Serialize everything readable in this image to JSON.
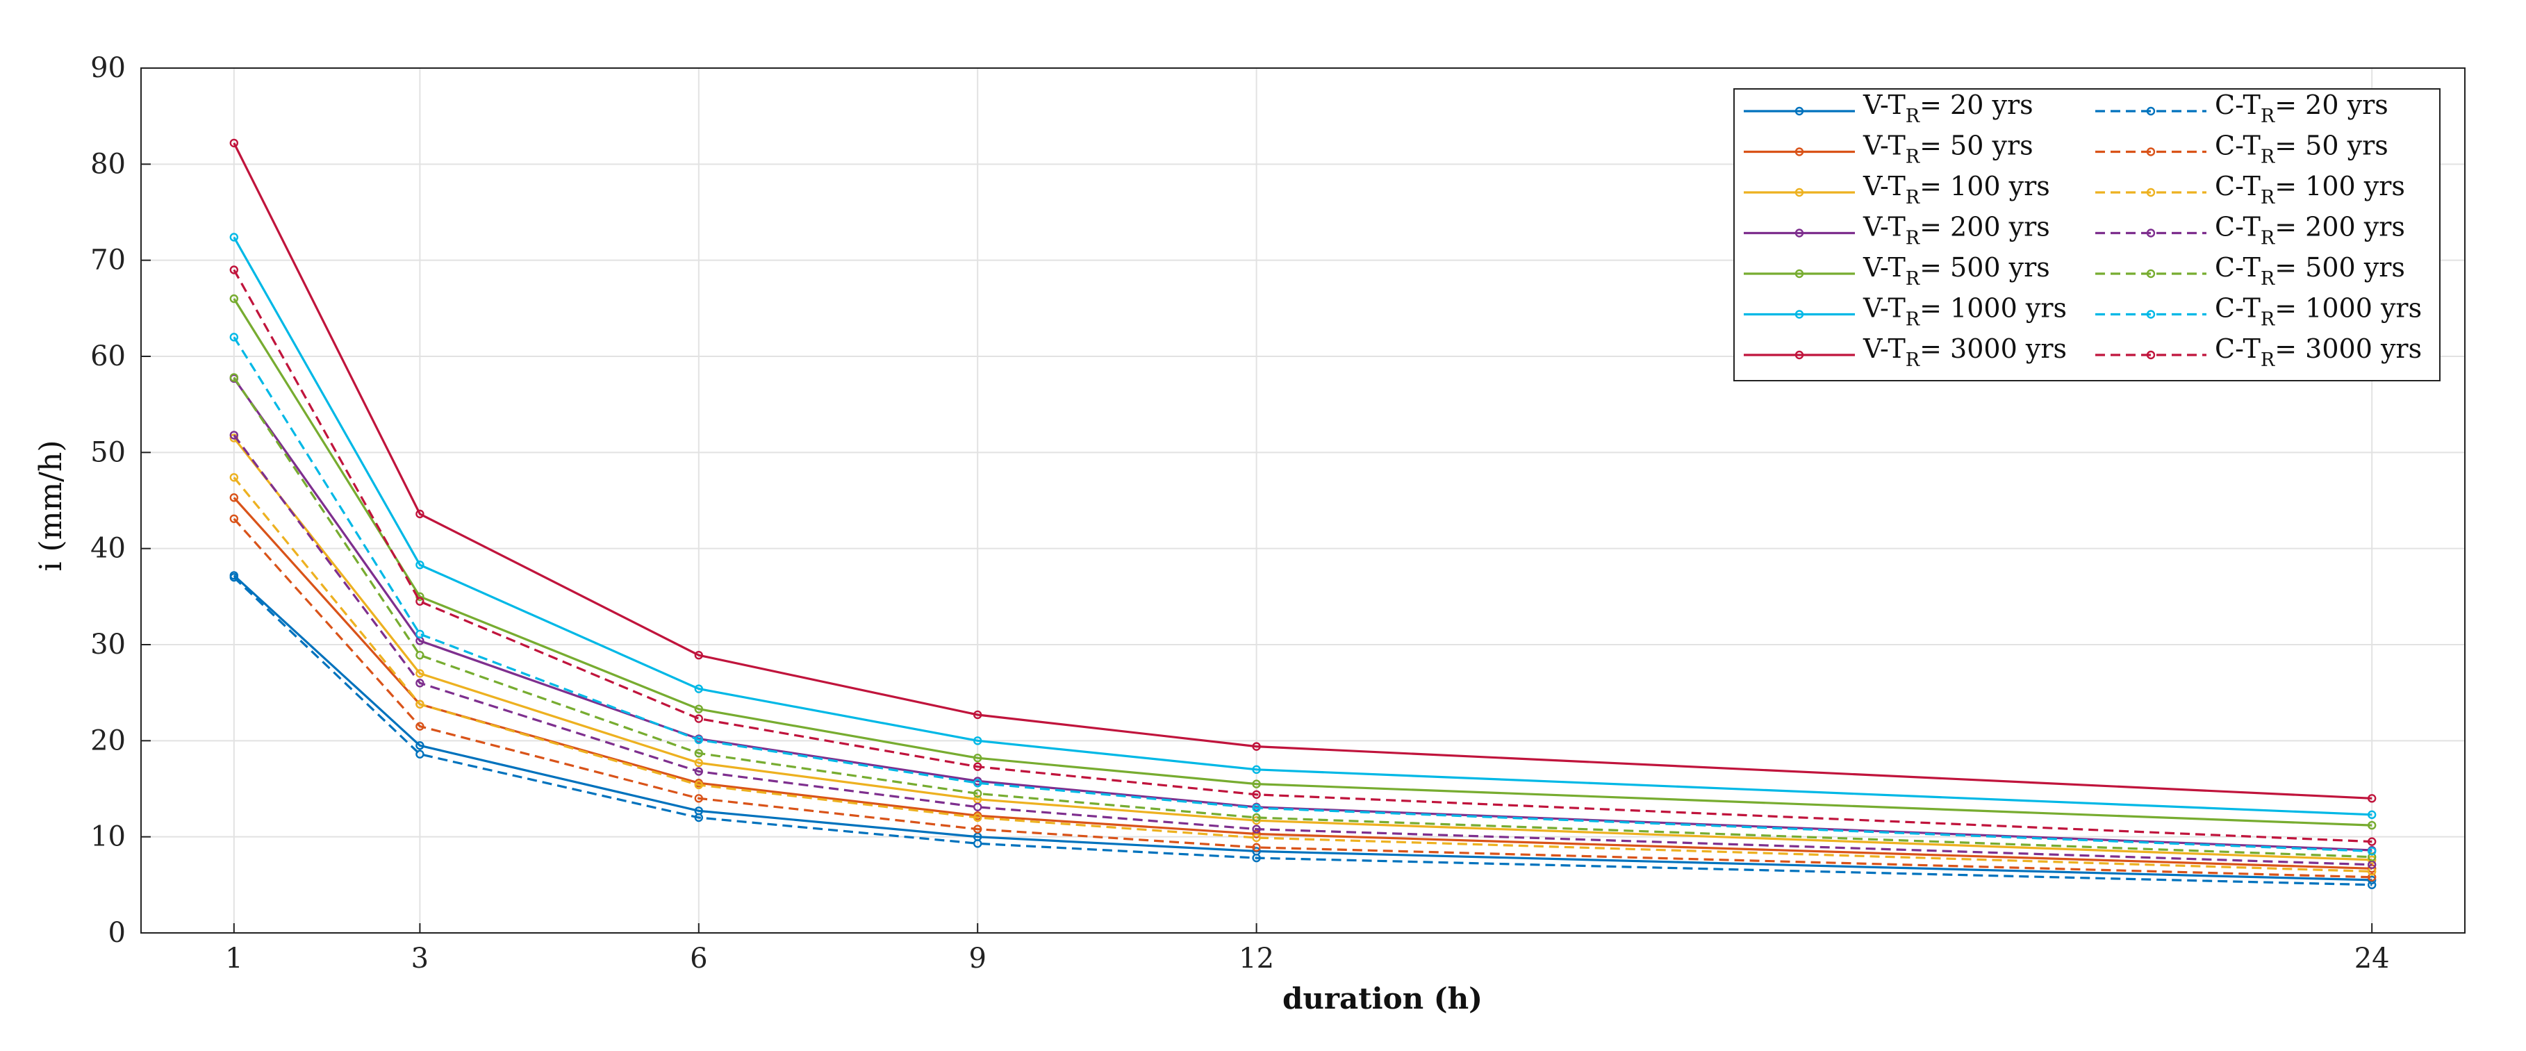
{
  "chart_data": {
    "type": "line",
    "title": "",
    "xlabel": "duration (h)",
    "ylabel": "i (mm/h)",
    "x": [
      1,
      3,
      6,
      9,
      12,
      24
    ],
    "xlim": [
      0,
      25
    ],
    "ylim": [
      0,
      90
    ],
    "xticks": [
      1,
      3,
      6,
      9,
      12,
      24
    ],
    "yticks": [
      0,
      10,
      20,
      30,
      40,
      50,
      60,
      70,
      80,
      90
    ],
    "grid": true,
    "legend_position": "top-right",
    "series": [
      {
        "name": "V-T",
        "sub": "R",
        "suffix": "= 20 yrs",
        "style": "solid",
        "color": "#0072BD",
        "values": [
          37.2,
          19.5,
          12.7,
          10.0,
          8.5,
          5.5
        ]
      },
      {
        "name": "V-T",
        "sub": "R",
        "suffix": "= 50 yrs",
        "style": "solid",
        "color": "#D95319",
        "values": [
          45.3,
          23.8,
          15.6,
          12.2,
          10.3,
          6.7
        ]
      },
      {
        "name": "V-T",
        "sub": "R",
        "suffix": "= 100 yrs",
        "style": "solid",
        "color": "#EDB120",
        "values": [
          51.5,
          27.0,
          17.7,
          13.9,
          11.7,
          7.6
        ]
      },
      {
        "name": "V-T",
        "sub": "R",
        "suffix": "= 200 yrs",
        "style": "solid",
        "color": "#7E2F8E",
        "values": [
          57.7,
          30.4,
          20.2,
          15.8,
          13.1,
          8.6
        ]
      },
      {
        "name": "V-T",
        "sub": "R",
        "suffix": "= 500 yrs",
        "style": "solid",
        "color": "#77AC30",
        "values": [
          66.0,
          35.0,
          23.3,
          18.2,
          15.5,
          11.2
        ]
      },
      {
        "name": "V-T",
        "sub": "R",
        "suffix": "= 1000 yrs",
        "style": "solid",
        "color": "#00B8E6",
        "values": [
          72.4,
          38.3,
          25.4,
          20.0,
          17.0,
          12.3
        ]
      },
      {
        "name": "V-T",
        "sub": "R",
        "suffix": "= 3000 yrs",
        "style": "solid",
        "color": "#C0143C",
        "values": [
          82.2,
          43.6,
          28.9,
          22.7,
          19.4,
          14.0
        ]
      },
      {
        "name": "C-T",
        "sub": "R",
        "suffix": "= 20 yrs",
        "style": "dashed",
        "color": "#0072BD",
        "values": [
          37.0,
          18.6,
          12.0,
          9.3,
          7.8,
          5.0
        ]
      },
      {
        "name": "C-T",
        "sub": "R",
        "suffix": "= 50 yrs",
        "style": "dashed",
        "color": "#D95319",
        "values": [
          43.1,
          21.5,
          14.0,
          10.8,
          8.9,
          5.8
        ]
      },
      {
        "name": "C-T",
        "sub": "R",
        "suffix": "= 100 yrs",
        "style": "dashed",
        "color": "#EDB120",
        "values": [
          47.4,
          23.8,
          15.4,
          12.0,
          9.9,
          6.4
        ]
      },
      {
        "name": "C-T",
        "sub": "R",
        "suffix": "= 200 yrs",
        "style": "dashed",
        "color": "#7E2F8E",
        "values": [
          51.8,
          26.0,
          16.8,
          13.1,
          10.8,
          7.1
        ]
      },
      {
        "name": "C-T",
        "sub": "R",
        "suffix": "= 500 yrs",
        "style": "dashed",
        "color": "#77AC30",
        "values": [
          57.8,
          28.9,
          18.7,
          14.5,
          12.0,
          7.9
        ]
      },
      {
        "name": "C-T",
        "sub": "R",
        "suffix": "= 1000 yrs",
        "style": "dashed",
        "color": "#00B8E6",
        "values": [
          62.0,
          31.1,
          20.1,
          15.6,
          13.0,
          8.5
        ]
      },
      {
        "name": "C-T",
        "sub": "R",
        "suffix": "= 3000 yrs",
        "style": "dashed",
        "color": "#C0143C",
        "values": [
          69.0,
          34.5,
          22.3,
          17.3,
          14.4,
          9.5
        ]
      }
    ]
  }
}
